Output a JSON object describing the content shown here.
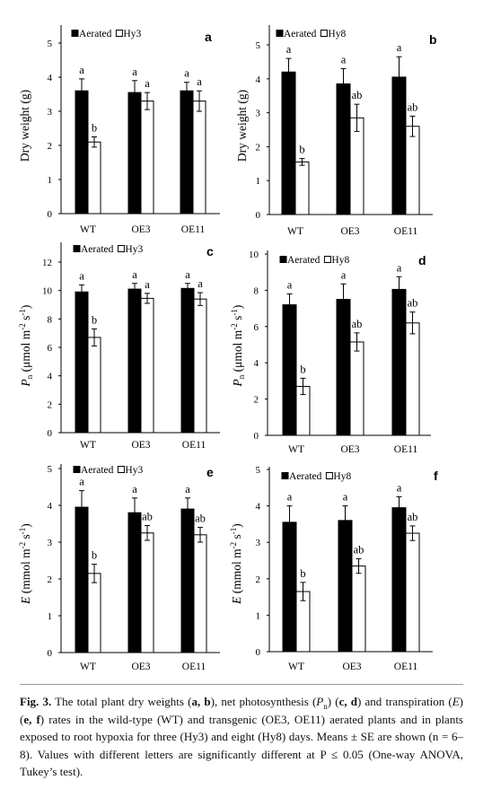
{
  "chart_data": [
    {
      "panel": "a",
      "type": "bar",
      "categories": [
        "WT",
        "OE3",
        "OE11"
      ],
      "ylabel": {
        "text": [
          "Dry weight (g)"
        ]
      },
      "ylim": [
        0,
        5
      ],
      "yticks": [
        0,
        1,
        2,
        3,
        4,
        5
      ],
      "legend": "top-left",
      "series": [
        {
          "name": "Aerated",
          "fill": "#000000",
          "values": [
            3.6,
            3.55,
            3.6
          ],
          "errors": [
            0.35,
            0.35,
            0.25
          ],
          "letters": [
            "a",
            "a",
            "a"
          ]
        },
        {
          "name": "Hy3",
          "fill": "#ffffff",
          "values": [
            2.1,
            3.3,
            3.3
          ],
          "errors": [
            0.15,
            0.25,
            0.3
          ],
          "letters": [
            "b",
            "a",
            "a"
          ]
        }
      ]
    },
    {
      "panel": "b",
      "type": "bar",
      "categories": [
        "WT",
        "OE3",
        "OE11"
      ],
      "ylabel": {
        "text": [
          "Dry weight (g)"
        ]
      },
      "ylim": [
        0,
        5
      ],
      "yticks": [
        0,
        1,
        2,
        3,
        4,
        5
      ],
      "legend": "top-left",
      "series": [
        {
          "name": "Aerated",
          "fill": "#000000",
          "values": [
            4.2,
            3.85,
            4.05
          ],
          "errors": [
            0.4,
            0.45,
            0.6
          ],
          "letters": [
            "a",
            "a",
            "a"
          ]
        },
        {
          "name": "Hy8",
          "fill": "#ffffff",
          "values": [
            1.55,
            2.85,
            2.6
          ],
          "errors": [
            0.1,
            0.4,
            0.3
          ],
          "letters": [
            "b",
            "ab",
            "ab"
          ]
        }
      ]
    },
    {
      "panel": "c",
      "type": "bar",
      "categories": [
        "WT",
        "OE3",
        "OE11"
      ],
      "ylabel": {
        "symbol": "P",
        "subscript": "n",
        "text": [
          " (μmol m",
          "-2",
          " s",
          "-1",
          ")"
        ]
      },
      "ylim": [
        0,
        12
      ],
      "yticks": [
        0,
        2,
        4,
        6,
        8,
        10,
        12
      ],
      "legend": "top-left",
      "series": [
        {
          "name": "Aerated",
          "fill": "#000000",
          "values": [
            9.9,
            10.1,
            10.15
          ],
          "errors": [
            0.5,
            0.4,
            0.35
          ],
          "letters": [
            "a",
            "a",
            "a"
          ]
        },
        {
          "name": "Hy3",
          "fill": "#ffffff",
          "values": [
            6.7,
            9.45,
            9.4
          ],
          "errors": [
            0.6,
            0.35,
            0.45
          ],
          "letters": [
            "b",
            "a",
            "a"
          ]
        }
      ]
    },
    {
      "panel": "d",
      "type": "bar",
      "categories": [
        "WT",
        "OE3",
        "OE11"
      ],
      "ylabel": {
        "symbol": "P",
        "subscript": "n",
        "text": [
          " (μmol m",
          "-2",
          " s",
          "-1",
          ")"
        ]
      },
      "ylim": [
        0,
        10
      ],
      "yticks": [
        0,
        2,
        4,
        6,
        8,
        10
      ],
      "legend": "top-left",
      "series": [
        {
          "name": "Aerated",
          "fill": "#000000",
          "values": [
            7.2,
            7.5,
            8.05
          ],
          "errors": [
            0.6,
            0.85,
            0.7
          ],
          "letters": [
            "a",
            "a",
            "a"
          ]
        },
        {
          "name": "Hy8",
          "fill": "#ffffff",
          "values": [
            2.7,
            5.15,
            6.2
          ],
          "errors": [
            0.45,
            0.5,
            0.6
          ],
          "letters": [
            "b",
            "ab",
            "ab"
          ]
        }
      ]
    },
    {
      "panel": "e",
      "type": "bar",
      "categories": [
        "WT",
        "OE3",
        "OE11"
      ],
      "ylabel": {
        "symbol": "E",
        "text": [
          " (mmol m",
          "-2",
          " s",
          "-1",
          ")"
        ]
      },
      "ylim": [
        0,
        5
      ],
      "yticks": [
        0,
        1,
        2,
        3,
        4,
        5
      ],
      "legend": "top-left",
      "series": [
        {
          "name": "Aerated",
          "fill": "#000000",
          "values": [
            3.95,
            3.8,
            3.9
          ],
          "errors": [
            0.45,
            0.4,
            0.3
          ],
          "letters": [
            "a",
            "a",
            "a"
          ]
        },
        {
          "name": "Hy3",
          "fill": "#ffffff",
          "values": [
            2.15,
            3.25,
            3.2
          ],
          "errors": [
            0.25,
            0.2,
            0.2
          ],
          "letters": [
            "b",
            "ab",
            "ab"
          ]
        }
      ]
    },
    {
      "panel": "f",
      "type": "bar",
      "categories": [
        "WT",
        "OE3",
        "OE11"
      ],
      "ylabel": {
        "symbol": "E",
        "text": [
          " (mmol m",
          "-2",
          " s",
          "-1",
          ")"
        ]
      },
      "ylim": [
        0,
        5
      ],
      "yticks": [
        0,
        1,
        2,
        3,
        4,
        5
      ],
      "legend": "top-left",
      "series": [
        {
          "name": "Aerated",
          "fill": "#000000",
          "values": [
            3.55,
            3.6,
            3.95
          ],
          "errors": [
            0.45,
            0.4,
            0.3
          ],
          "letters": [
            "a",
            "a",
            "a"
          ]
        },
        {
          "name": "Hy8",
          "fill": "#ffffff",
          "values": [
            1.65,
            2.35,
            3.25
          ],
          "errors": [
            0.25,
            0.2,
            0.2
          ],
          "letters": [
            "b",
            "ab",
            "ab"
          ]
        }
      ]
    }
  ],
  "caption": {
    "parts": [
      "Fig. 3.",
      " The total plant dry weights (",
      "a, b",
      "), net photosynthesis (",
      "P",
      "n",
      ") (",
      "c, d",
      ") and transpiration (",
      "E",
      ") (",
      "e, f",
      ") rates in the wild-type (WT) and transgenic (OE3, OE11) aerated plants and in plants exposed to root hypoxia for three (Hy3) and eight (Hy8) days. Means ± SE are shown (n = 6–8). Values with different letters are significantly different at P ≤ 0.05 (One-way ANOVA, Tukey’s test)."
    ]
  }
}
